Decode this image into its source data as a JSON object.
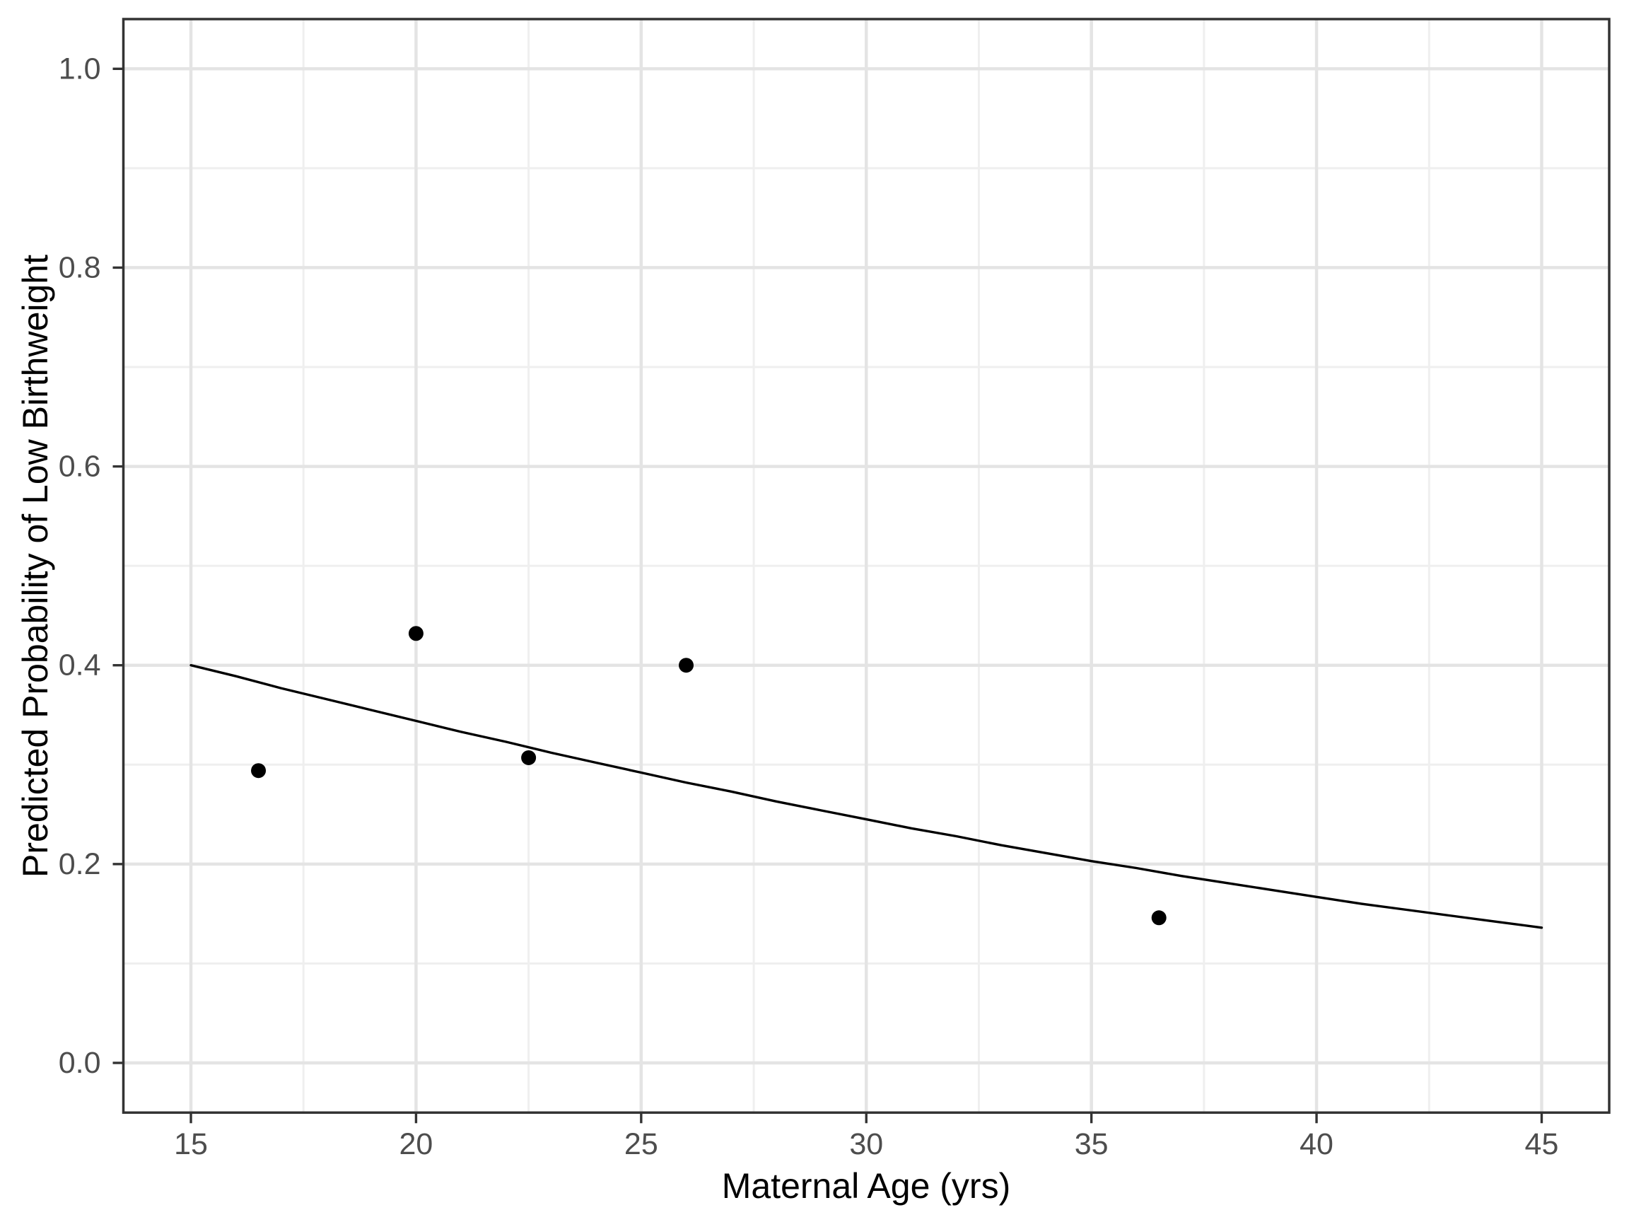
{
  "chart_data": {
    "type": "scatter",
    "title": "",
    "xlabel": "Maternal Age (yrs)",
    "ylabel": "Predicted Probability of Low Birthweight",
    "xlim": [
      13.5,
      46.5
    ],
    "ylim": [
      -0.05,
      1.05
    ],
    "grid": "major and minor, light gray on white (ggplot theme_bw style)",
    "legend_position": "none",
    "x_ticks": [
      15,
      20,
      25,
      30,
      35,
      40,
      45
    ],
    "x_tick_labels": [
      "15",
      "20",
      "25",
      "30",
      "35",
      "40",
      "45"
    ],
    "x_minor_ticks": [
      17.5,
      22.5,
      27.5,
      32.5,
      37.5,
      42.5
    ],
    "y_ticks": [
      0.0,
      0.2,
      0.4,
      0.6,
      0.8,
      1.0
    ],
    "y_tick_labels": [
      "0.0",
      "0.2",
      "0.4",
      "0.6",
      "0.8",
      "1.0"
    ],
    "y_minor_ticks": [
      0.1,
      0.3,
      0.5,
      0.7,
      0.9
    ],
    "points": [
      {
        "x": 16.5,
        "y": 0.294
      },
      {
        "x": 20.0,
        "y": 0.432
      },
      {
        "x": 22.5,
        "y": 0.307
      },
      {
        "x": 26.0,
        "y": 0.4
      },
      {
        "x": 36.5,
        "y": 0.146
      }
    ],
    "curve": {
      "name": "fitted logistic curve",
      "x": [
        15,
        16,
        17,
        18,
        19,
        20,
        21,
        22,
        23,
        24,
        25,
        26,
        27,
        28,
        29,
        30,
        31,
        32,
        33,
        34,
        35,
        36,
        37,
        38,
        39,
        40,
        41,
        42,
        43,
        44,
        45
      ],
      "y": [
        0.4,
        0.389,
        0.377,
        0.366,
        0.355,
        0.344,
        0.333,
        0.323,
        0.312,
        0.302,
        0.292,
        0.282,
        0.273,
        0.263,
        0.254,
        0.245,
        0.236,
        0.228,
        0.219,
        0.211,
        0.203,
        0.196,
        0.188,
        0.181,
        0.174,
        0.167,
        0.16,
        0.154,
        0.148,
        0.142,
        0.136
      ]
    }
  },
  "style": {
    "background": "#ffffff",
    "panel_border_color": "#333333",
    "grid_major_color": "#e4e4e4",
    "grid_minor_color": "#efefef",
    "tick_color": "#333333",
    "tick_label_color": "#4d4d4d",
    "axis_title_color": "#000000",
    "point_color": "#000000",
    "curve_color": "#000000"
  }
}
